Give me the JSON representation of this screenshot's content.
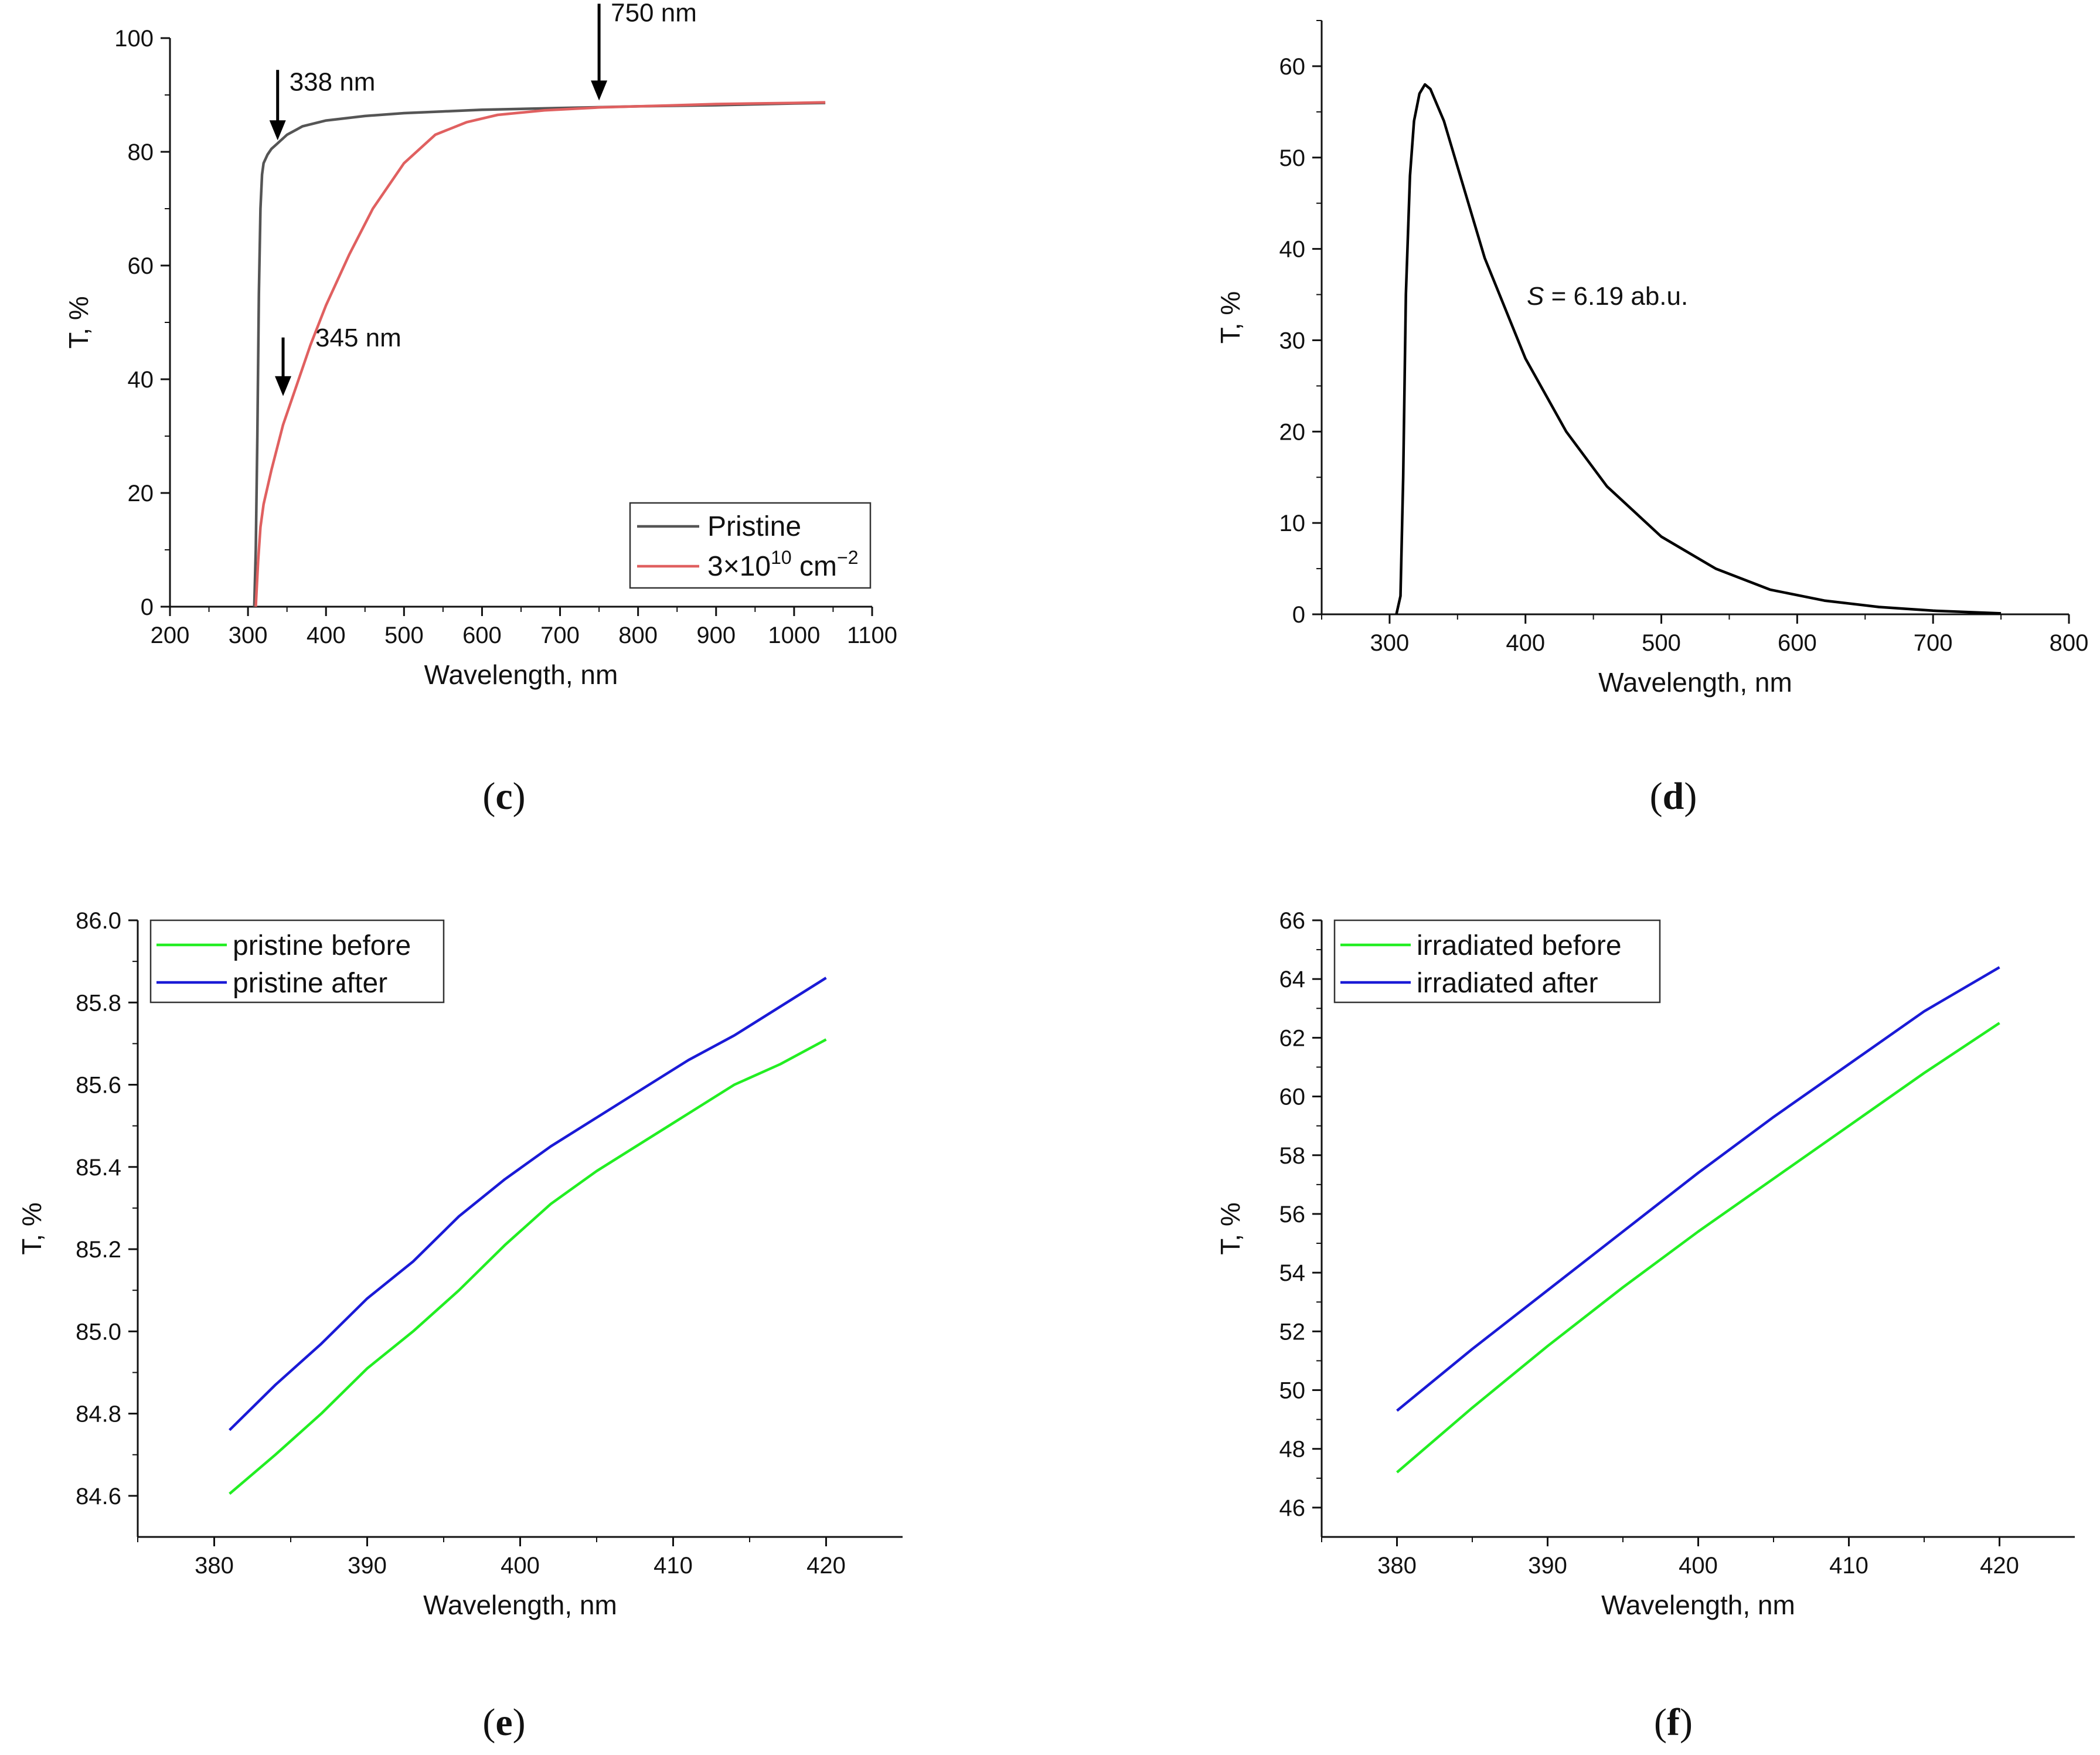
{
  "chart_data": [
    {
      "panel": "c",
      "panel_label": "c",
      "type": "line",
      "xlabel": "Wavelength, nm",
      "ylabel": "T, %",
      "xlim": [
        200,
        1100
      ],
      "ylim": [
        0,
        100
      ],
      "xticks": [
        "200",
        "300",
        "400",
        "500",
        "600",
        "700",
        "800",
        "900",
        "1000",
        "1100"
      ],
      "yticks": [
        "0",
        "20",
        "40",
        "60",
        "80",
        "100"
      ],
      "legend": {
        "placement": "bottom-right"
      },
      "series": [
        {
          "name": "Pristine",
          "color": "#555555",
          "x": [
            308,
            310,
            312,
            314,
            316,
            318,
            320,
            325,
            330,
            338,
            350,
            370,
            400,
            450,
            500,
            550,
            600,
            700,
            800,
            900,
            1000,
            1040
          ],
          "values": [
            0,
            10,
            30,
            55,
            70,
            76,
            78,
            79.5,
            80.5,
            81.5,
            83,
            84.5,
            85.5,
            86.3,
            86.8,
            87.1,
            87.4,
            87.7,
            88,
            88.2,
            88.5,
            88.6
          ]
        },
        {
          "name_parts": [
            "3×10",
            "10",
            " cm",
            "−2"
          ],
          "color": "#e06060",
          "x": [
            310,
            313,
            316,
            320,
            330,
            345,
            360,
            380,
            400,
            430,
            460,
            500,
            540,
            580,
            620,
            680,
            750,
            800,
            850,
            900,
            950,
            1000,
            1040
          ],
          "values": [
            0,
            8,
            14,
            18,
            24,
            32,
            38,
            46,
            53,
            62,
            70,
            78,
            83,
            85.2,
            86.5,
            87.3,
            87.8,
            88,
            88.2,
            88.4,
            88.5,
            88.6,
            88.7
          ]
        }
      ],
      "annotations": [
        {
          "label": "338 nm",
          "x": 338,
          "y": 81
        },
        {
          "label": "345 nm",
          "x": 345,
          "y": 36
        },
        {
          "label": "750 nm",
          "x": 750,
          "y": 88
        }
      ]
    },
    {
      "panel": "d",
      "panel_label": "d",
      "type": "line",
      "xlabel": "Wavelength, nm",
      "ylabel": "T, %",
      "xlim": [
        250,
        800
      ],
      "ylim": [
        0,
        65
      ],
      "xticks": [
        "300",
        "400",
        "500",
        "600",
        "700",
        "800"
      ],
      "yticks": [
        "0",
        "10",
        "20",
        "30",
        "40",
        "50",
        "60"
      ],
      "series": [
        {
          "name": "",
          "color": "#000000",
          "x": [
            305,
            308,
            310,
            312,
            315,
            318,
            322,
            326,
            330,
            340,
            350,
            370,
            400,
            430,
            460,
            500,
            540,
            580,
            620,
            660,
            700,
            750
          ],
          "values": [
            0,
            2,
            15,
            35,
            48,
            54,
            57,
            58,
            57.5,
            54,
            49,
            39,
            28,
            20,
            14,
            8.5,
            5,
            2.7,
            1.5,
            0.8,
            0.4,
            0.1
          ]
        }
      ],
      "annotation": {
        "symbol": "S",
        "text": " = 6.19 ab.u.",
        "x": 400,
        "y": 35
      }
    },
    {
      "panel": "e",
      "panel_label": "e",
      "type": "line",
      "xlabel": "Wavelength, nm",
      "ylabel": "T, %",
      "xlim": [
        375,
        425
      ],
      "ylim": [
        84.5,
        86.0
      ],
      "xticks": [
        "380",
        "390",
        "400",
        "410",
        "420"
      ],
      "yticks": [
        "84.6",
        "84.8",
        "85.0",
        "85.2",
        "85.4",
        "85.6",
        "85.8",
        "86.0"
      ],
      "legend": {
        "placement": "top-left"
      },
      "series": [
        {
          "name": "pristine before",
          "color": "#22ee22",
          "x": [
            381,
            384,
            387,
            390,
            393,
            396,
            399,
            402,
            405,
            408,
            411,
            414,
            417,
            420
          ],
          "values": [
            84.605,
            84.7,
            84.8,
            84.91,
            85.0,
            85.1,
            85.21,
            85.31,
            85.39,
            85.46,
            85.53,
            85.6,
            85.65,
            85.71
          ]
        },
        {
          "name": "pristine after",
          "color": "#1a1ad6",
          "x": [
            381,
            384,
            387,
            390,
            393,
            396,
            399,
            402,
            405,
            408,
            411,
            414,
            417,
            420
          ],
          "values": [
            84.76,
            84.87,
            84.97,
            85.08,
            85.17,
            85.28,
            85.37,
            85.45,
            85.52,
            85.59,
            85.66,
            85.72,
            85.79,
            85.86
          ]
        }
      ]
    },
    {
      "panel": "f",
      "panel_label": "f",
      "type": "line",
      "xlabel": "Wavelength, nm",
      "ylabel": "T, %",
      "xlim": [
        375,
        425
      ],
      "ylim": [
        45,
        66
      ],
      "xticks": [
        "380",
        "390",
        "400",
        "410",
        "420"
      ],
      "yticks": [
        "46",
        "48",
        "50",
        "52",
        "54",
        "56",
        "58",
        "60",
        "62",
        "64",
        "66"
      ],
      "legend": {
        "placement": "top-left"
      },
      "series": [
        {
          "name": "irradiated before",
          "color": "#22ee22",
          "x": [
            380,
            385,
            390,
            395,
            400,
            405,
            410,
            415,
            420
          ],
          "values": [
            47.2,
            49.4,
            51.5,
            53.5,
            55.4,
            57.2,
            59.0,
            60.8,
            62.5
          ]
        },
        {
          "name": "irradiated after",
          "color": "#1a1ad6",
          "x": [
            380,
            385,
            390,
            395,
            400,
            405,
            410,
            415,
            420
          ],
          "values": [
            49.3,
            51.4,
            53.4,
            55.4,
            57.4,
            59.3,
            61.1,
            62.9,
            64.4
          ]
        }
      ]
    }
  ]
}
